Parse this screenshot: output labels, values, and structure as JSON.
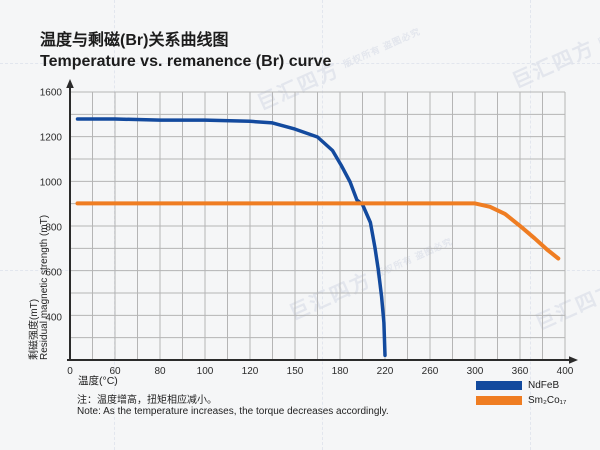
{
  "page": {
    "background": "#f5f6f7"
  },
  "title": {
    "zh": "温度与剩磁(Br)关系曲线图",
    "en": "Temperature vs. remanence (Br) curve"
  },
  "watermark": {
    "text": "巨汇四方",
    "subtext": "版权所有  盗图必究"
  },
  "note": {
    "zh": "注：温度增高，扭矩相应减小。",
    "en": "Note: As the temperature increases, the torque decreases accordingly."
  },
  "chart_data": {
    "type": "line",
    "title": "Temperature vs. remanence (Br) curve",
    "xlabel": "温度(°C)",
    "ylabel_zh": "剩磁强度(mT)",
    "ylabel_en": "Residual magnetic strength (mT)",
    "x_ticks": [
      0,
      60,
      80,
      100,
      120,
      150,
      180,
      220,
      260,
      300,
      360,
      400
    ],
    "y_ticks": [
      1600,
      1200,
      1000,
      800,
      600,
      400
    ],
    "grid": true,
    "legend_position": "bottom-right",
    "axis_color": "#2b2b2b",
    "grid_color": "#b5b5b5",
    "series": [
      {
        "name": "NdFeB",
        "color": "#134a9e",
        "points": [
          [
            10,
            1360
          ],
          [
            60,
            1360
          ],
          [
            80,
            1350
          ],
          [
            100,
            1350
          ],
          [
            120,
            1340
          ],
          [
            135,
            1325
          ],
          [
            150,
            1270
          ],
          [
            165,
            1200
          ],
          [
            175,
            1140
          ],
          [
            181,
            1075
          ],
          [
            189,
            1000
          ],
          [
            195,
            920
          ],
          [
            200,
            900
          ],
          [
            207,
            820
          ],
          [
            211,
            710
          ],
          [
            214,
            610
          ],
          [
            217,
            490
          ],
          [
            219,
            375
          ],
          [
            220,
            230
          ]
        ]
      },
      {
        "name": "Sm₂Co₁₇",
        "color": "#ef7d22",
        "points": [
          [
            10,
            905
          ],
          [
            60,
            905
          ],
          [
            100,
            905
          ],
          [
            150,
            905
          ],
          [
            200,
            905
          ],
          [
            250,
            905
          ],
          [
            300,
            905
          ],
          [
            320,
            890
          ],
          [
            340,
            858
          ],
          [
            360,
            805
          ],
          [
            373,
            750
          ],
          [
            384,
            700
          ],
          [
            394,
            660
          ]
        ]
      }
    ]
  }
}
